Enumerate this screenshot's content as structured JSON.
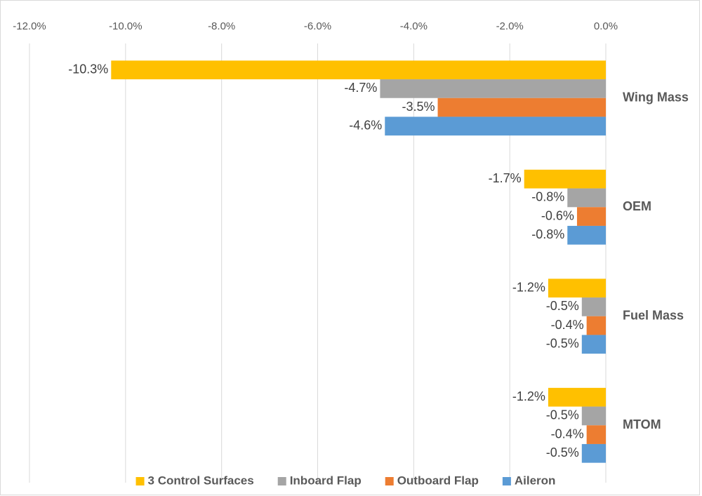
{
  "chart_data": {
    "type": "bar",
    "orientation": "horizontal",
    "categories": [
      "Wing Mass",
      "OEM",
      "Fuel Mass",
      "MTOM"
    ],
    "series": [
      {
        "name": "3 Control Surfaces",
        "color": "#FFC000",
        "values": [
          -10.3,
          -1.7,
          -1.2,
          -1.2
        ],
        "value_labels": [
          "-10.3%",
          "-1.7%",
          "-1.2%",
          "-1.2%"
        ]
      },
      {
        "name": "Inboard Flap",
        "color": "#A5A5A5",
        "values": [
          -4.7,
          -0.8,
          -0.5,
          -0.5
        ],
        "value_labels": [
          "-4.7%",
          "-0.8%",
          "-0.5%",
          "-0.5%"
        ]
      },
      {
        "name": "Outboard Flap",
        "color": "#ED7D31",
        "values": [
          -3.5,
          -0.6,
          -0.4,
          -0.4
        ],
        "value_labels": [
          "-3.5%",
          "-0.6%",
          "-0.4%",
          "-0.4%"
        ]
      },
      {
        "name": "Aileron",
        "color": "#5B9BD5",
        "values": [
          -4.6,
          -0.8,
          -0.5,
          -0.5
        ],
        "value_labels": [
          "-4.6%",
          "-0.8%",
          "-0.5%",
          "-0.5%"
        ]
      }
    ],
    "xlim": [
      -12,
      0
    ],
    "xticks": [
      {
        "value": -12,
        "label": "-12.0%"
      },
      {
        "value": -10,
        "label": "-10.0%"
      },
      {
        "value": -8,
        "label": "-8.0%"
      },
      {
        "value": -6,
        "label": "-6.0%"
      },
      {
        "value": -4,
        "label": "-4.0%"
      },
      {
        "value": -2,
        "label": "-2.0%"
      },
      {
        "value": 0,
        "label": "0.0%"
      }
    ],
    "grid": true,
    "legend": "bottom"
  }
}
